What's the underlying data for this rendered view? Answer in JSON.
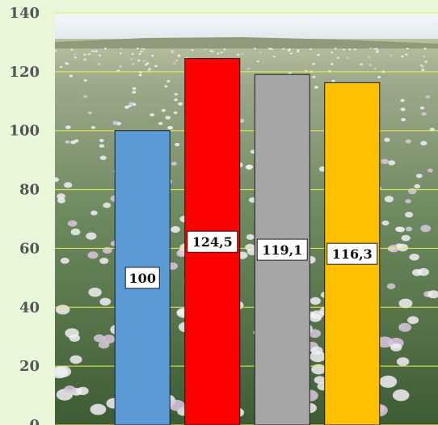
{
  "chart_data": {
    "type": "bar",
    "title": "",
    "xlabel": "",
    "ylabel": "",
    "categories": [
      "",
      "",
      "",
      ""
    ],
    "values": [
      100,
      124.5,
      119.1,
      116.3
    ],
    "value_labels": [
      "100",
      "124,5",
      "119,1",
      "116,3"
    ],
    "bar_colors": [
      "#5b9bd5",
      "#ff0000",
      "#a6a6a6",
      "#ffc000"
    ],
    "ylim": [
      0,
      140
    ],
    "y_ticks": [
      0,
      20,
      40,
      60,
      80,
      100,
      120,
      140
    ],
    "grid": true,
    "gridline_color": "#e6f04a",
    "plot_area_background": "photo of a field of white and pale-violet poppies under a pale sky",
    "legend": "none"
  }
}
